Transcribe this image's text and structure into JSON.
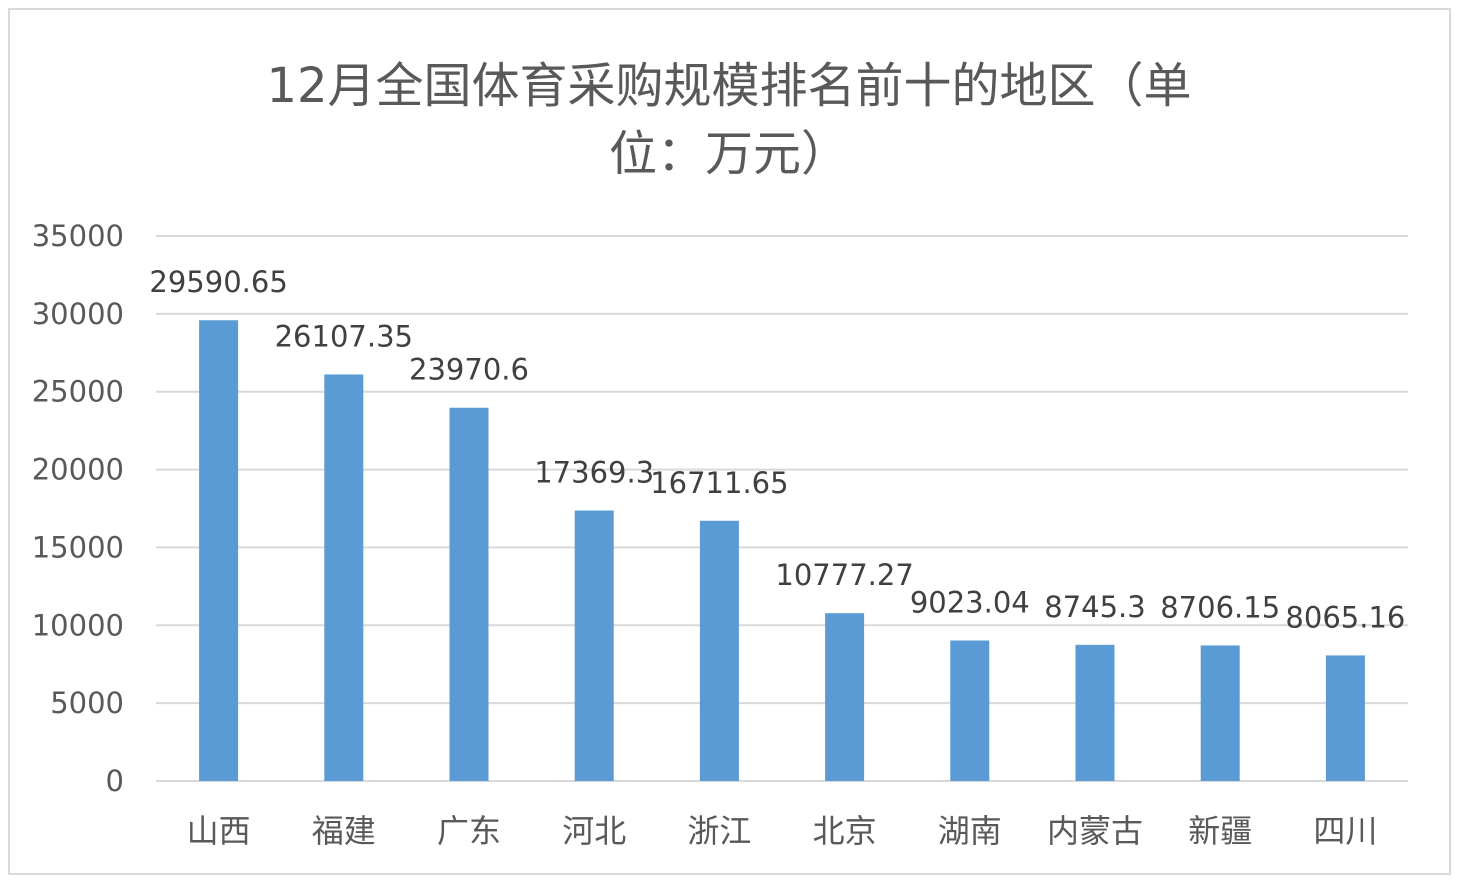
{
  "chart_data": {
    "type": "bar",
    "title_lines": [
      "12月全国体育采购规模排名前十的地区（单",
      "位：万元）"
    ],
    "categories": [
      "山西",
      "福建",
      "广东",
      "河北",
      "浙江",
      "北京",
      "湖南",
      "内蒙古",
      "新疆",
      "四川"
    ],
    "values": [
      29590.65,
      26107.35,
      23970.6,
      17369.3,
      16711.65,
      10777.27,
      9023.04,
      8745.3,
      8706.15,
      8065.16
    ],
    "data_labels": [
      "29590.65",
      "26107.35",
      "23970.6",
      "17369.3",
      "16711.65",
      "10777.27",
      "9023.04",
      "8745.3",
      "8706.15",
      "8065.16"
    ],
    "y_ticks": [
      "0",
      "5000",
      "10000",
      "15000",
      "20000",
      "25000",
      "30000",
      "35000"
    ],
    "ylim": [
      0,
      35000
    ],
    "grid": true,
    "bar_color": "#5b9bd5",
    "xlabel": "",
    "ylabel": ""
  }
}
